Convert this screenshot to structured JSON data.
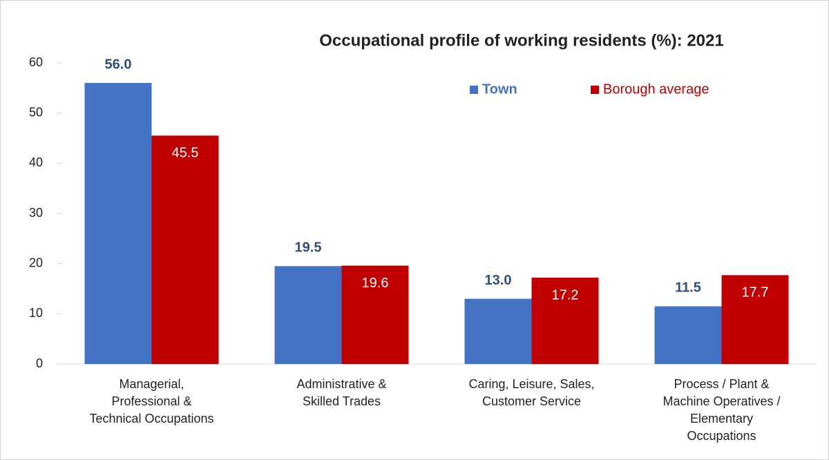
{
  "chart_data": {
    "type": "bar",
    "title": "Occupational profile of working residents (%):  2021",
    "categories": [
      [
        "Managerial,",
        "Professional &",
        "Technical Occupations"
      ],
      [
        "Administrative &",
        "Skilled Trades"
      ],
      [
        "Caring, Leisure, Sales,",
        "Customer Service"
      ],
      [
        "Process / Plant &",
        "Machine Operatives /",
        "Elementary",
        "Occupations"
      ]
    ],
    "series": [
      {
        "name": "Town",
        "color": "#4472c4",
        "values": [
          56.0,
          19.5,
          13.0,
          11.5
        ],
        "value_labels": [
          "56.0",
          "19.5",
          "13.0",
          "11.5"
        ]
      },
      {
        "name": "Borough average",
        "color": "#c00000",
        "values": [
          45.5,
          19.6,
          17.2,
          17.7
        ],
        "value_labels": [
          "45.5",
          "19.6",
          "17.2",
          "17.7"
        ]
      }
    ],
    "ylim": [
      0,
      60
    ],
    "yticks": [
      0,
      10,
      20,
      30,
      40,
      50,
      60
    ],
    "grid": false,
    "legend": "upper right"
  }
}
